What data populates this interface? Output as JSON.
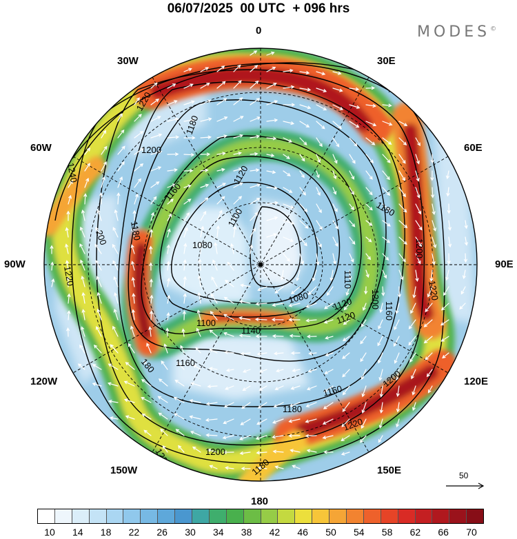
{
  "header": {
    "title": "06/07/2025  00 UTC  + 096 hrs",
    "brand": "MODES",
    "brand_mark": "©"
  },
  "map": {
    "projection": "south polar stereographic",
    "longitude_labels": {
      "top": "0",
      "top_right": "30E",
      "right_upper": "60E",
      "right": "90E",
      "right_lower": "120E",
      "bottom_right": "150E",
      "bottom": "180",
      "bottom_left": "150W",
      "left_lower": "120W",
      "left": "90W",
      "left_upper": "60W",
      "top_left": "30W"
    },
    "contour_labels": [
      "1240",
      "1220",
      "1200",
      "1180",
      "1160",
      "1140",
      "1120",
      "1100",
      "1080",
      "1080",
      "1100",
      "1120",
      "1140",
      "1160",
      "1180",
      "1200",
      "1220",
      "1240",
      "1200",
      "1180",
      "1160",
      "1120",
      "1110",
      "1200",
      "1220",
      "180",
      "1160",
      "1200",
      "1220",
      "1180",
      "1200",
      "200",
      "1220",
      "1180",
      "1160"
    ],
    "wind_scale_label": "50"
  },
  "colorbar": {
    "colors": [
      "#ffffff",
      "#eef6fc",
      "#dbeef9",
      "#c4e3f6",
      "#aad6f2",
      "#90c8ec",
      "#77b9e4",
      "#5ea8da",
      "#4a97cf",
      "#3ea7a4",
      "#3fae6d",
      "#49b04d",
      "#6cbd45",
      "#96cc47",
      "#c4d940",
      "#ecdf3c",
      "#f7c539",
      "#f5a536",
      "#f28330",
      "#ee612b",
      "#e64427",
      "#d92b25",
      "#c41f22",
      "#b0181e",
      "#9a121b",
      "#870e17"
    ],
    "tick_labels": [
      "10",
      "14",
      "18",
      "22",
      "26",
      "30",
      "34",
      "38",
      "42",
      "46",
      "50",
      "54",
      "58",
      "62",
      "66",
      "70"
    ]
  }
}
